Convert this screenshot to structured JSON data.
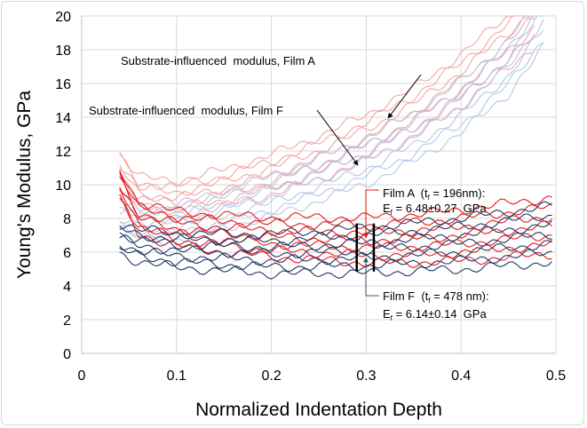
{
  "chart_data": {
    "type": "line",
    "title": "",
    "xlabel": "Normalized Indentation Depth",
    "ylabel": "Young's Modulus, GPa",
    "xlim": [
      0,
      0.5
    ],
    "ylim": [
      0,
      20
    ],
    "xticks": [
      "0",
      "0.1",
      "0.2",
      "0.3",
      "0.4",
      "0.5"
    ],
    "yticks": [
      "0",
      "2",
      "4",
      "6",
      "8",
      "10",
      "12",
      "14",
      "16",
      "18",
      "20"
    ],
    "grid": true,
    "series": [
      {
        "color": "#f4a6a6",
        "x": [
          0.04,
          0.06,
          0.1,
          0.15,
          0.2,
          0.25,
          0.3,
          0.35,
          0.4,
          0.45,
          0.48
        ],
        "y": [
          11,
          9.5,
          9.2,
          9.8,
          10.6,
          11.6,
          12.8,
          14.3,
          16.2,
          18.5,
          20
        ]
      },
      {
        "color": "#b4c7e7",
        "x": [
          0.04,
          0.08,
          0.1,
          0.15,
          0.2,
          0.25,
          0.3,
          0.35,
          0.4,
          0.45,
          0.49
        ],
        "y": [
          8,
          7.6,
          7.8,
          8.5,
          9.3,
          10.3,
          11.4,
          12.8,
          14.6,
          17,
          20
        ]
      },
      {
        "color": "#e41a1c",
        "x": [
          0.04,
          0.06,
          0.1,
          0.15,
          0.2,
          0.25,
          0.3,
          0.35,
          0.4,
          0.45,
          0.5
        ],
        "y": [
          10,
          8,
          7.4,
          7.1,
          6.9,
          6.8,
          6.7,
          6.8,
          7.0,
          7.3,
          7.6
        ]
      },
      {
        "color": "#1f3864",
        "x": [
          0.04,
          0.06,
          0.1,
          0.15,
          0.2,
          0.25,
          0.3,
          0.35,
          0.4,
          0.45,
          0.5
        ],
        "y": [
          6.8,
          6.4,
          6.1,
          6.0,
          5.9,
          6.0,
          6.1,
          6.3,
          6.5,
          6.8,
          7.1
        ]
      }
    ],
    "markers": {
      "x": [
        0.29,
        0.308
      ],
      "y": [
        4.85,
        7.7
      ]
    },
    "annotations": {
      "film_a_substrate": "Substrate-influenced  modulus, Film A",
      "film_f_substrate": "Substrate-influenced  modulus, Film F",
      "film_a_line1": "Film A  (t",
      "film_a_sub": "f",
      "film_a_line1_end": " = 196nm):",
      "film_a_line2_pre": "E",
      "film_a_line2_sub": "f",
      "film_a_line2_end": " = 6.48±0.27  GPa",
      "film_f_line1": "Film F  (t",
      "film_f_sub": "f",
      "film_f_line1_end": " = 478 nm):",
      "film_f_line2_pre": "E",
      "film_f_line2_sub": "f",
      "film_f_line2_end": " = 6.14±0.14  GPa"
    }
  }
}
